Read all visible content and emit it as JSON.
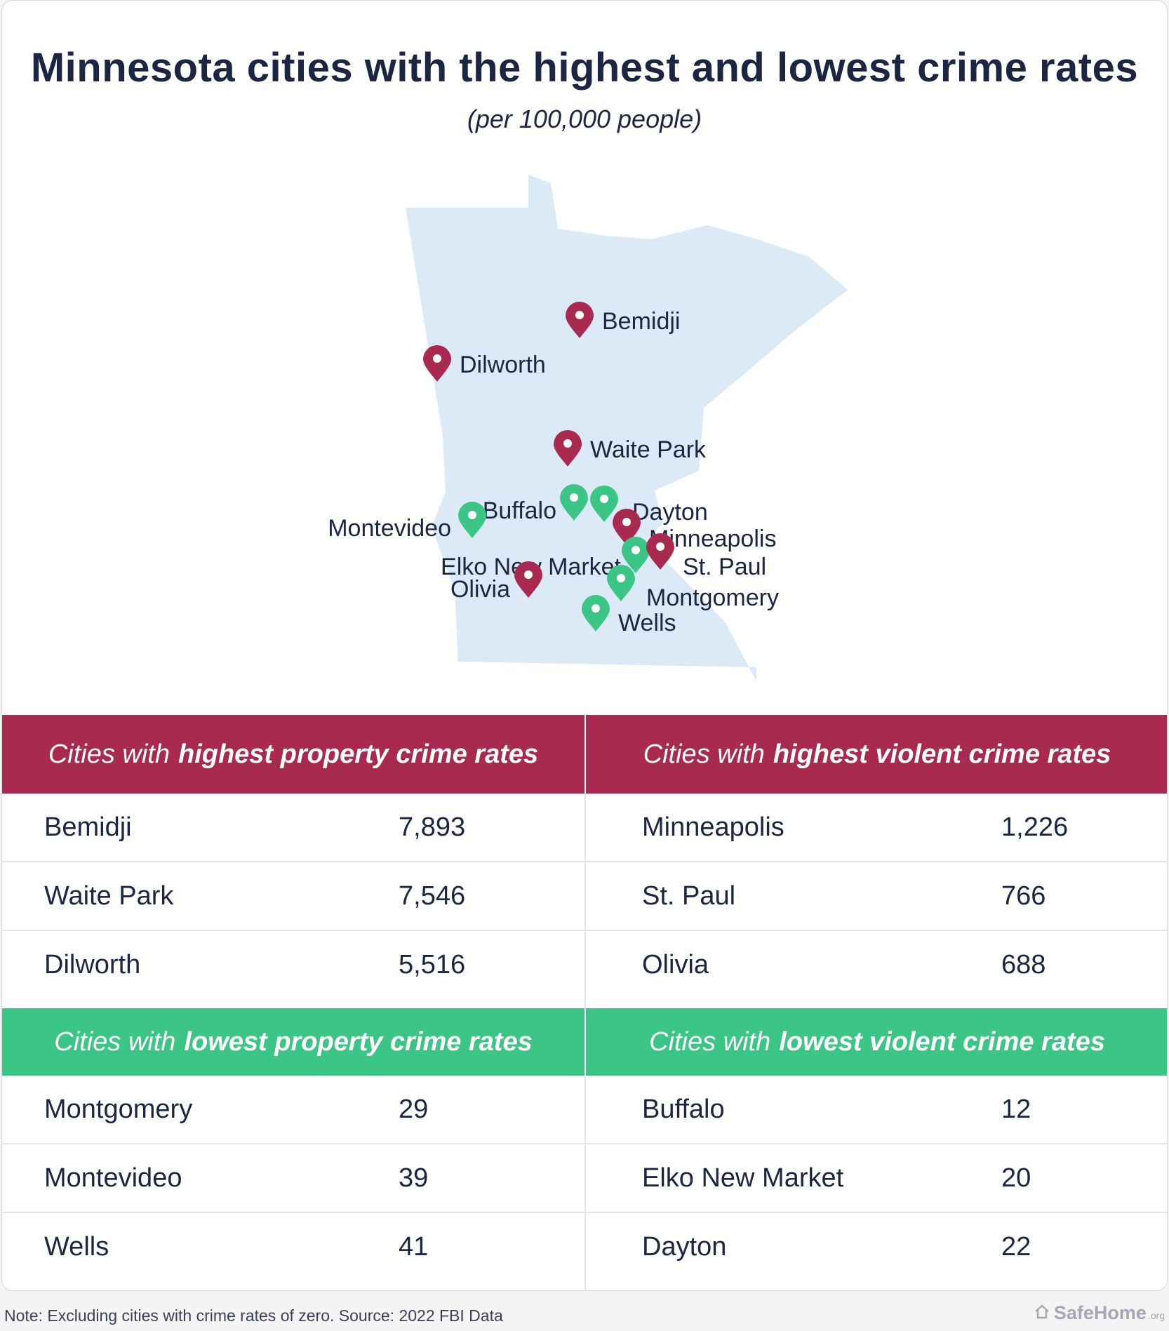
{
  "title": "Minnesota cities with the highest and lowest crime rates",
  "subtitle": "(per 100,000 people)",
  "colors": {
    "high": "#a82a50",
    "low": "#3cc685",
    "map_fill": "#dce9f7",
    "text": "#1c2541"
  },
  "map": {
    "markers": [
      {
        "city": "Bemidji",
        "group": "high"
      },
      {
        "city": "Dilworth",
        "group": "high"
      },
      {
        "city": "Waite Park",
        "group": "high"
      },
      {
        "city": "Buffalo",
        "group": "low"
      },
      {
        "city": "Dayton",
        "group": "low"
      },
      {
        "city": "Montevideo",
        "group": "low"
      },
      {
        "city": "Minneapolis",
        "group": "high"
      },
      {
        "city": "Elko New Market",
        "group": "low"
      },
      {
        "city": "St. Paul",
        "group": "high"
      },
      {
        "city": "Olivia",
        "group": "high"
      },
      {
        "city": "Montgomery",
        "group": "low"
      },
      {
        "city": "Wells",
        "group": "low"
      }
    ]
  },
  "tables": {
    "high_property": {
      "prefix": "Cities with",
      "emphasis": "highest property crime rates",
      "rows": [
        {
          "city": "Bemidji",
          "value": "7,893"
        },
        {
          "city": "Waite Park",
          "value": "7,546"
        },
        {
          "city": "Dilworth",
          "value": "5,516"
        }
      ]
    },
    "high_violent": {
      "prefix": "Cities with",
      "emphasis": "highest violent crime rates",
      "rows": [
        {
          "city": "Minneapolis",
          "value": "1,226"
        },
        {
          "city": "St. Paul",
          "value": "766"
        },
        {
          "city": "Olivia",
          "value": "688"
        }
      ]
    },
    "low_property": {
      "prefix": "Cities with",
      "emphasis": "lowest property crime rates",
      "rows": [
        {
          "city": "Montgomery",
          "value": "29"
        },
        {
          "city": "Montevideo",
          "value": "39"
        },
        {
          "city": "Wells",
          "value": "41"
        }
      ]
    },
    "low_violent": {
      "prefix": "Cities with",
      "emphasis": "lowest violent crime rates",
      "rows": [
        {
          "city": "Buffalo",
          "value": "12"
        },
        {
          "city": "Elko New Market",
          "value": "20"
        },
        {
          "city": "Dayton",
          "value": "22"
        }
      ]
    }
  },
  "footer": {
    "note": "Note: Excluding cities with crime rates of zero. Source: 2022 FBI Data",
    "brand": "SafeHome",
    "brand_suffix": ".org"
  }
}
